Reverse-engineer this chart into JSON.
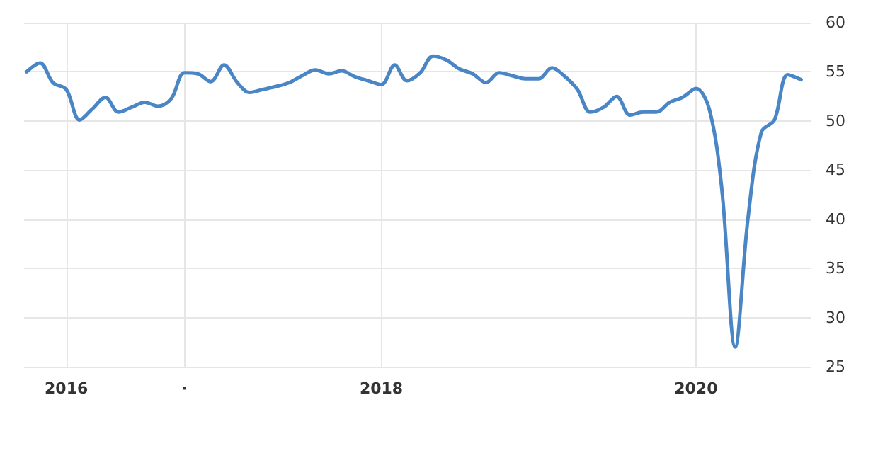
{
  "chart_data": {
    "type": "line",
    "x": [
      "2015-10",
      "2015-11",
      "2015-12",
      "2016-01",
      "2016-02",
      "2016-03",
      "2016-04",
      "2016-05",
      "2016-06",
      "2016-07",
      "2016-08",
      "2016-09",
      "2016-10",
      "2016-11",
      "2016-12",
      "2017-01",
      "2017-02",
      "2017-03",
      "2017-04",
      "2017-05",
      "2017-06",
      "2017-07",
      "2017-08",
      "2017-09",
      "2017-10",
      "2017-11",
      "2017-12",
      "2018-01",
      "2018-02",
      "2018-03",
      "2018-04",
      "2018-05",
      "2018-06",
      "2018-07",
      "2018-08",
      "2018-09",
      "2018-10",
      "2018-11",
      "2018-12",
      "2019-01",
      "2019-02",
      "2019-03",
      "2019-04",
      "2019-05",
      "2019-06",
      "2019-07",
      "2019-08",
      "2019-09",
      "2019-10",
      "2019-11",
      "2019-12",
      "2020-01",
      "2020-02",
      "2020-03",
      "2020-04",
      "2020-05",
      "2020-06",
      "2020-07",
      "2020-08",
      "2020-09"
    ],
    "series": [
      {
        "color": "#4a86c5",
        "values": [
          55.0,
          55.9,
          53.9,
          53.2,
          50.1,
          51.2,
          52.4,
          50.9,
          51.4,
          51.9,
          51.5,
          52.3,
          54.9,
          54.8,
          54.0,
          55.7,
          53.9,
          52.9,
          53.2,
          53.5,
          53.9,
          54.6,
          55.2,
          54.8,
          55.1,
          54.5,
          54.1,
          53.7,
          55.7,
          54.1,
          54.9,
          56.6,
          56.2,
          55.3,
          54.8,
          53.9,
          54.9,
          54.6,
          54.3,
          54.3,
          55.4,
          54.6,
          53.2,
          50.9,
          51.4,
          52.5,
          50.6,
          50.9,
          50.9,
          51.9,
          52.4,
          53.3,
          51.2,
          43.1,
          27.0,
          40.2,
          48.9,
          50.1,
          54.7,
          54.2
        ]
      }
    ],
    "xlim": [
      "2015-09-25",
      "2020-09-25"
    ],
    "xticks": [
      {
        "value": "2016-01-01",
        "label": "2016"
      },
      {
        "value": "2016-10-01",
        "label": "·"
      },
      {
        "value": "2018-01-01",
        "label": "2018"
      },
      {
        "value": "2020-01-01",
        "label": "2020"
      }
    ],
    "ylim": [
      25,
      60
    ],
    "yticks": [
      25,
      30,
      35,
      40,
      45,
      50,
      55,
      60
    ],
    "grid": true,
    "marker": "none",
    "line_style": "solid"
  }
}
